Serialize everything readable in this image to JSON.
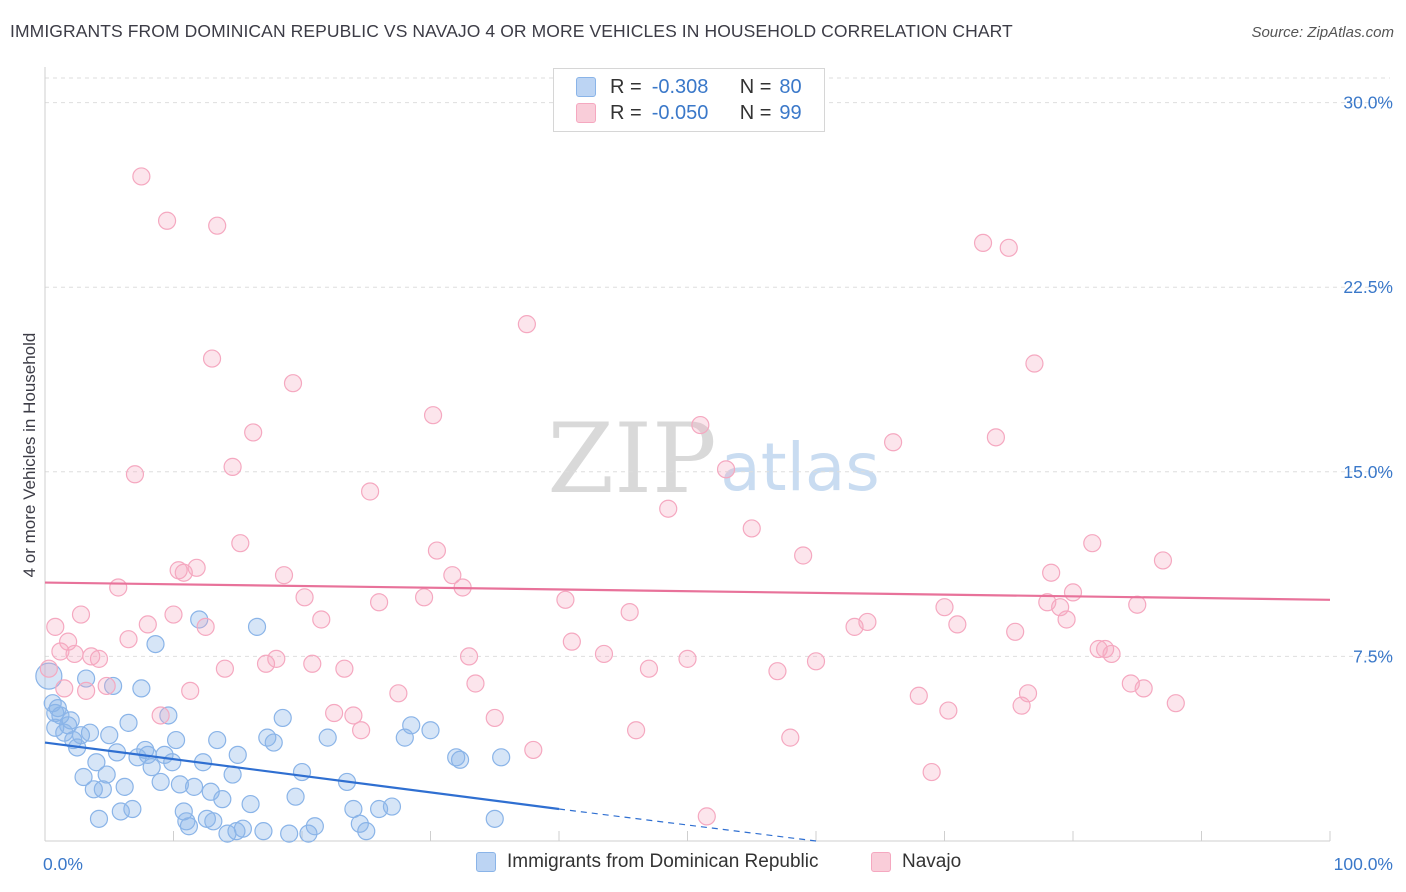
{
  "title": "IMMIGRANTS FROM DOMINICAN REPUBLIC VS NAVAJO 4 OR MORE VEHICLES IN HOUSEHOLD CORRELATION CHART",
  "source": "Source: ZipAtlas.com",
  "watermark": {
    "zip": "ZIP",
    "atlas": "atlas"
  },
  "legend": {
    "r_label": "R =",
    "n_label": "N =",
    "series1": {
      "r": "-0.308",
      "n": "80"
    },
    "series2": {
      "r": "-0.050",
      "n": "99"
    }
  },
  "chart_data": {
    "type": "scatter",
    "title": "IMMIGRANTS FROM DOMINICAN REPUBLIC VS NAVAJO 4 OR MORE VEHICLES IN HOUSEHOLD CORRELATION CHART",
    "xlabel": "",
    "ylabel": "4 or more Vehicles in Household",
    "xlim": [
      0,
      100
    ],
    "ylim": [
      0,
      31
    ],
    "x_ticks": [
      {
        "v": 0,
        "label": "0.0%"
      },
      {
        "v": 100,
        "label": "100.0%"
      }
    ],
    "y_ticks": [
      {
        "v": 7.5,
        "label": "7.5%"
      },
      {
        "v": 15,
        "label": "15.0%"
      },
      {
        "v": 22.5,
        "label": "22.5%"
      },
      {
        "v": 30,
        "label": "30.0%"
      }
    ],
    "series": [
      {
        "name": "Immigrants from Dominican Republic",
        "color": "#8ab4e8",
        "line_color": "#2f6fd1",
        "trend": {
          "x0": 0,
          "y0": 4.0,
          "x1": 40,
          "y1": 1.3,
          "dash_to": 60,
          "dash_y": 0.0
        },
        "points": [
          [
            0.3,
            6.7
          ],
          [
            0.6,
            5.6
          ],
          [
            0.8,
            5.2
          ],
          [
            1.0,
            5.4
          ],
          [
            1.2,
            5.1
          ],
          [
            1.5,
            4.4
          ],
          [
            1.8,
            4.7
          ],
          [
            2.0,
            4.9
          ],
          [
            2.2,
            4.1
          ],
          [
            2.5,
            3.8
          ],
          [
            2.8,
            4.3
          ],
          [
            3.0,
            2.6
          ],
          [
            3.2,
            6.6
          ],
          [
            3.5,
            4.4
          ],
          [
            3.8,
            2.1
          ],
          [
            4.0,
            3.2
          ],
          [
            4.2,
            0.9
          ],
          [
            4.5,
            2.1
          ],
          [
            4.8,
            2.7
          ],
          [
            5.0,
            4.3
          ],
          [
            5.3,
            6.3
          ],
          [
            5.6,
            3.6
          ],
          [
            5.9,
            1.2
          ],
          [
            6.2,
            2.2
          ],
          [
            6.5,
            4.8
          ],
          [
            6.8,
            1.3
          ],
          [
            7.2,
            3.4
          ],
          [
            7.5,
            6.2
          ],
          [
            7.8,
            3.7
          ],
          [
            8.0,
            3.5
          ],
          [
            8.3,
            3.0
          ],
          [
            8.6,
            8.0
          ],
          [
            9.0,
            2.4
          ],
          [
            9.3,
            3.5
          ],
          [
            9.6,
            5.1
          ],
          [
            9.9,
            3.2
          ],
          [
            10.2,
            4.1
          ],
          [
            10.5,
            2.3
          ],
          [
            10.8,
            1.2
          ],
          [
            11.0,
            0.8
          ],
          [
            11.2,
            0.6
          ],
          [
            11.6,
            2.2
          ],
          [
            12.0,
            9.0
          ],
          [
            12.3,
            3.2
          ],
          [
            12.6,
            0.9
          ],
          [
            12.9,
            2.0
          ],
          [
            13.1,
            0.8
          ],
          [
            13.4,
            4.1
          ],
          [
            13.8,
            1.7
          ],
          [
            14.2,
            0.3
          ],
          [
            14.6,
            2.7
          ],
          [
            14.9,
            0.4
          ],
          [
            15.0,
            3.5
          ],
          [
            15.4,
            0.5
          ],
          [
            16.0,
            1.5
          ],
          [
            16.5,
            8.7
          ],
          [
            17.0,
            0.4
          ],
          [
            17.3,
            4.2
          ],
          [
            17.8,
            4.0
          ],
          [
            18.5,
            5.0
          ],
          [
            19.0,
            0.3
          ],
          [
            19.5,
            1.8
          ],
          [
            20.0,
            2.8
          ],
          [
            20.5,
            0.3
          ],
          [
            21.0,
            0.6
          ],
          [
            22.0,
            4.2
          ],
          [
            23.5,
            2.4
          ],
          [
            24.0,
            1.3
          ],
          [
            24.5,
            0.7
          ],
          [
            25.0,
            0.4
          ],
          [
            26.0,
            1.3
          ],
          [
            27.0,
            1.4
          ],
          [
            28.0,
            4.2
          ],
          [
            28.5,
            4.7
          ],
          [
            30.0,
            4.5
          ],
          [
            32.0,
            3.4
          ],
          [
            32.3,
            3.3
          ],
          [
            35.0,
            0.9
          ],
          [
            35.5,
            3.4
          ],
          [
            0.8,
            4.6
          ]
        ]
      },
      {
        "name": "Navajo",
        "color": "#f5a8c0",
        "line_color": "#e8729a",
        "trend": {
          "x0": 0,
          "y0": 10.5,
          "x1": 100,
          "y1": 9.8
        },
        "points": [
          [
            0.3,
            7.0
          ],
          [
            0.8,
            8.7
          ],
          [
            1.2,
            7.7
          ],
          [
            1.5,
            6.2
          ],
          [
            1.8,
            8.1
          ],
          [
            2.3,
            7.6
          ],
          [
            2.8,
            9.2
          ],
          [
            3.2,
            6.1
          ],
          [
            3.6,
            7.5
          ],
          [
            4.2,
            7.4
          ],
          [
            4.8,
            6.3
          ],
          [
            5.7,
            10.3
          ],
          [
            6.5,
            8.2
          ],
          [
            7.0,
            14.9
          ],
          [
            7.5,
            27.0
          ],
          [
            8.0,
            8.8
          ],
          [
            9.0,
            5.1
          ],
          [
            9.5,
            25.2
          ],
          [
            10.0,
            9.2
          ],
          [
            10.4,
            11.0
          ],
          [
            10.8,
            10.9
          ],
          [
            11.3,
            6.1
          ],
          [
            11.8,
            11.1
          ],
          [
            12.5,
            8.7
          ],
          [
            13.0,
            19.6
          ],
          [
            13.4,
            25.0
          ],
          [
            14.0,
            7.0
          ],
          [
            14.6,
            15.2
          ],
          [
            15.2,
            12.1
          ],
          [
            16.2,
            16.6
          ],
          [
            17.2,
            7.2
          ],
          [
            18.0,
            7.4
          ],
          [
            18.6,
            10.8
          ],
          [
            19.3,
            18.6
          ],
          [
            20.2,
            9.9
          ],
          [
            20.8,
            7.2
          ],
          [
            21.5,
            9.0
          ],
          [
            22.5,
            5.2
          ],
          [
            23.3,
            7.0
          ],
          [
            24.0,
            5.1
          ],
          [
            24.6,
            4.5
          ],
          [
            25.3,
            14.2
          ],
          [
            26.0,
            9.7
          ],
          [
            27.5,
            6.0
          ],
          [
            29.5,
            9.9
          ],
          [
            30.2,
            17.3
          ],
          [
            30.5,
            11.8
          ],
          [
            31.7,
            10.8
          ],
          [
            32.5,
            10.3
          ],
          [
            33.0,
            7.5
          ],
          [
            33.5,
            6.4
          ],
          [
            35.0,
            5.0
          ],
          [
            37.5,
            21.0
          ],
          [
            38.0,
            3.7
          ],
          [
            40.5,
            9.8
          ],
          [
            41.0,
            8.1
          ],
          [
            43.5,
            7.6
          ],
          [
            45.5,
            9.3
          ],
          [
            46.0,
            4.5
          ],
          [
            47.0,
            7.0
          ],
          [
            48.5,
            13.5
          ],
          [
            50.0,
            7.4
          ],
          [
            51.0,
            16.9
          ],
          [
            51.5,
            1.0
          ],
          [
            53.0,
            15.1
          ],
          [
            55.0,
            12.7
          ],
          [
            57.0,
            6.9
          ],
          [
            58.0,
            4.2
          ],
          [
            59.0,
            11.6
          ],
          [
            60.0,
            7.3
          ],
          [
            63.0,
            8.7
          ],
          [
            64.0,
            8.9
          ],
          [
            66.0,
            16.2
          ],
          [
            68.0,
            5.9
          ],
          [
            69.0,
            2.8
          ],
          [
            70.0,
            9.5
          ],
          [
            70.3,
            5.3
          ],
          [
            71.0,
            8.8
          ],
          [
            73.0,
            24.3
          ],
          [
            74.0,
            16.4
          ],
          [
            75.0,
            24.1
          ],
          [
            75.5,
            8.5
          ],
          [
            76.0,
            5.5
          ],
          [
            76.5,
            6.0
          ],
          [
            77.0,
            19.4
          ],
          [
            78.0,
            9.7
          ],
          [
            78.3,
            10.9
          ],
          [
            79.0,
            9.5
          ],
          [
            79.5,
            9.0
          ],
          [
            80.0,
            10.1
          ],
          [
            81.5,
            12.1
          ],
          [
            82.0,
            7.8
          ],
          [
            82.5,
            7.8
          ],
          [
            83.0,
            7.6
          ],
          [
            84.5,
            6.4
          ],
          [
            85.0,
            9.6
          ],
          [
            85.5,
            6.2
          ],
          [
            87.0,
            11.4
          ],
          [
            88.0,
            5.6
          ]
        ]
      }
    ]
  },
  "bottom_legend": [
    {
      "label": "Immigrants from Dominican Republic"
    },
    {
      "label": "Navajo"
    }
  ]
}
